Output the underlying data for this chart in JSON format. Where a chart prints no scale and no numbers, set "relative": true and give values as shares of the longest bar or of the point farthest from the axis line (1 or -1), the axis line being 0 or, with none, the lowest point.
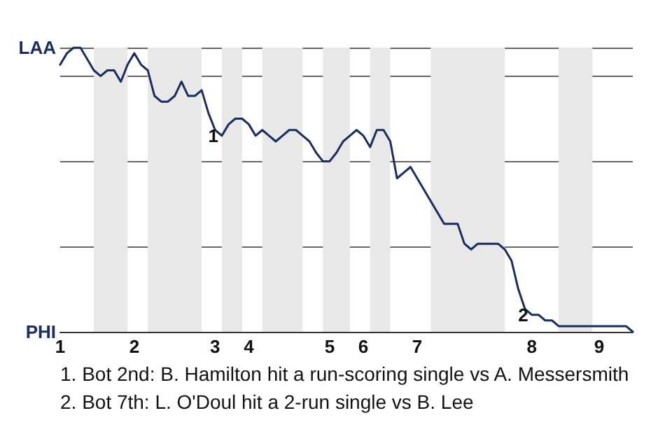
{
  "chart_data": {
    "type": "line",
    "relative": true,
    "categories": [
      "1",
      null,
      null,
      null,
      null,
      null,
      null,
      null,
      null,
      null,
      null,
      "2",
      null,
      null,
      null,
      null,
      null,
      null,
      null,
      null,
      null,
      null,
      null,
      "3",
      null,
      null,
      null,
      null,
      "4",
      null,
      null,
      null,
      null,
      null,
      null,
      null,
      null,
      null,
      null,
      null,
      "5",
      null,
      null,
      null,
      null,
      "6",
      null,
      null,
      null,
      null,
      null,
      null,
      null,
      "7",
      null,
      null,
      null,
      null,
      null,
      null,
      null,
      null,
      null,
      null,
      null,
      null,
      null,
      null,
      null,
      null,
      "8",
      null,
      null,
      null,
      null,
      null,
      null,
      null,
      null,
      null,
      "9",
      null,
      null,
      null,
      null,
      null
    ],
    "series": [
      {
        "color": "#1b2d5c",
        "values": [
          0.94,
          0.98,
          1,
          1,
          0.96,
          0.92,
          0.9,
          0.92,
          0.92,
          0.88,
          0.94,
          0.98,
          0.94,
          0.92,
          0.83,
          0.81,
          0.81,
          0.83,
          0.88,
          0.83,
          0.83,
          0.85,
          0.77,
          0.71,
          0.69,
          0.73,
          0.75,
          0.75,
          0.73,
          0.69,
          0.71,
          0.69,
          0.67,
          0.69,
          0.71,
          0.71,
          0.69,
          0.67,
          0.63,
          0.6,
          0.6,
          0.63,
          0.67,
          0.69,
          0.71,
          0.69,
          0.65,
          0.71,
          0.71,
          0.67,
          0.54,
          0.56,
          0.58,
          0.54,
          0.5,
          0.46,
          0.42,
          0.38,
          0.38,
          0.38,
          0.31,
          0.29,
          0.31,
          0.31,
          0.31,
          0.31,
          0.29,
          0.25,
          0.15,
          0.08,
          0.06,
          0.06,
          0.04,
          0.04,
          0.02,
          0.02,
          0.02,
          0.02,
          0.02,
          0.02,
          0.02,
          0.02,
          0.02,
          0.02,
          0.02,
          0
        ]
      }
    ],
    "annotations": [
      "LAA",
      "PHI",
      {
        "text": "1",
        "y": 0.69
      },
      {
        "text": "2",
        "y": 0.06
      },
      "1. Bot 2nd: B. Hamilton hit a run-scoring single vs A. Messersmith",
      "2. Bot 7th: L. O'Doul hit a 2-run single vs B. Lee"
    ],
    "grid": "y",
    "marker": "none",
    "line_style": "solid"
  }
}
